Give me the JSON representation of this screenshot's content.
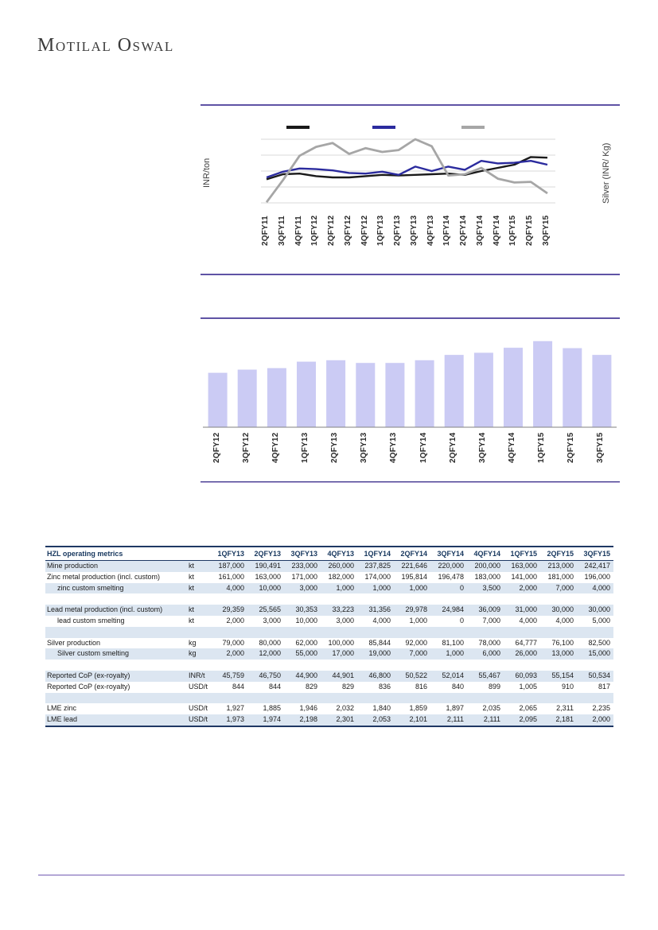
{
  "brand": {
    "name": "Motilal Oswal"
  },
  "chart_data": [
    {
      "type": "line",
      "title": "",
      "ylabel": "INR/ton",
      "y2label": "Silver (INR/ Kg)",
      "ylim": [
        0,
        100
      ],
      "grid": true,
      "legend_position": "top",
      "legend_labels_visible": false,
      "x": [
        "2QFY11",
        "3QFY11",
        "4QFY11",
        "1QFY12",
        "2QFY12",
        "3QFY12",
        "4QFY12",
        "1QFY13",
        "2QFY13",
        "3QFY13",
        "4QFY13",
        "1QFY14",
        "2QFY14",
        "3QFY14",
        "4QFY14",
        "1QFY15",
        "2QFY15",
        "3QFY15"
      ],
      "series": [
        {
          "name": "black-series",
          "color": "#1a1a1a",
          "width": 2.4,
          "values": [
            37,
            45,
            46,
            42,
            40,
            40,
            42,
            44,
            43,
            44,
            45,
            46,
            44,
            50,
            55,
            60,
            72,
            71
          ]
        },
        {
          "name": "navy-series",
          "color": "#2b2b9e",
          "width": 2.4,
          "values": [
            40,
            49,
            54,
            53,
            51,
            47,
            46,
            49,
            44,
            57,
            50,
            57,
            52,
            66,
            62,
            63,
            66,
            60
          ]
        },
        {
          "name": "gray-series",
          "color": "#a6a6a6",
          "width": 2.8,
          "values": [
            1,
            36,
            74,
            88,
            94,
            77,
            86,
            80,
            83,
            100,
            89,
            43,
            45,
            55,
            38,
            32,
            33,
            15
          ]
        }
      ]
    },
    {
      "type": "bar",
      "title": "",
      "xlabel": "",
      "ylabel": "",
      "ylim": [
        0,
        65
      ],
      "bar_color": "#cbcbf4",
      "categories": [
        "2QFY12",
        "3QFY12",
        "4QFY12",
        "1QFY13",
        "2QFY13",
        "3QFY13",
        "4QFY13",
        "1QFY14",
        "2QFY14",
        "3QFY14",
        "4QFY14",
        "1QFY15",
        "2QFY15",
        "3QFY15"
      ],
      "values": [
        38.0,
        40.2,
        41.3,
        45.8,
        46.8,
        44.9,
        44.9,
        46.8,
        50.5,
        52.0,
        55.5,
        60.1,
        55.2,
        50.5
      ]
    }
  ],
  "table": {
    "title": "HZL operating metrics",
    "columns": [
      "1QFY13",
      "2QFY13",
      "3QFY13",
      "4QFY13",
      "1QFY14",
      "2QFY14",
      "3QFY14",
      "4QFY14",
      "1QFY15",
      "2QFY15",
      "3QFY15"
    ],
    "rows": [
      {
        "label": "Mine production",
        "unit": "kt",
        "indent": false,
        "values": [
          "187,000",
          "190,491",
          "233,000",
          "260,000",
          "237,825",
          "221,646",
          "220,000",
          "200,000",
          "163,000",
          "213,000",
          "242,417"
        ]
      },
      {
        "label": "Zinc metal production (incl. custom)",
        "unit": "kt",
        "indent": false,
        "values": [
          "161,000",
          "163,000",
          "171,000",
          "182,000",
          "174,000",
          "195,814",
          "196,478",
          "183,000",
          "141,000",
          "181,000",
          "196,000"
        ]
      },
      {
        "label": "zinc custom smelting",
        "unit": "kt",
        "indent": true,
        "values": [
          "4,000",
          "10,000",
          "3,000",
          "1,000",
          "1,000",
          "1,000",
          "0",
          "3,500",
          "2,000",
          "7,000",
          "4,000"
        ]
      },
      {
        "label": "",
        "unit": "",
        "indent": false,
        "values": [
          "",
          "",
          "",
          "",
          "",
          "",
          "",
          "",
          "",
          "",
          ""
        ]
      },
      {
        "label": "Lead metal production (incl. custom)",
        "unit": "kt",
        "indent": false,
        "values": [
          "29,359",
          "25,565",
          "30,353",
          "33,223",
          "31,356",
          "29,978",
          "24,984",
          "36,009",
          "31,000",
          "30,000",
          "30,000"
        ]
      },
      {
        "label": "lead custom smelting",
        "unit": "kt",
        "indent": true,
        "values": [
          "2,000",
          "3,000",
          "10,000",
          "3,000",
          "4,000",
          "1,000",
          "0",
          "7,000",
          "4,000",
          "4,000",
          "5,000"
        ]
      },
      {
        "label": "",
        "unit": "",
        "indent": false,
        "values": [
          "",
          "",
          "",
          "",
          "",
          "",
          "",
          "",
          "",
          "",
          ""
        ]
      },
      {
        "label": "Silver production",
        "unit": "kg",
        "indent": false,
        "values": [
          "79,000",
          "80,000",
          "62,000",
          "100,000",
          "85,844",
          "92,000",
          "81,100",
          "78,000",
          "64,777",
          "76,100",
          "82,500"
        ]
      },
      {
        "label": "Silver custom smelting",
        "unit": "kg",
        "indent": true,
        "values": [
          "2,000",
          "12,000",
          "55,000",
          "17,000",
          "19,000",
          "7,000",
          "1,000",
          "6,000",
          "26,000",
          "13,000",
          "15,000"
        ]
      },
      {
        "label": "",
        "unit": "",
        "indent": false,
        "values": [
          "",
          "",
          "",
          "",
          "",
          "",
          "",
          "",
          "",
          "",
          ""
        ]
      },
      {
        "label": "Reported CoP (ex-royalty)",
        "unit": "INR/t",
        "indent": false,
        "values": [
          "45,759",
          "46,750",
          "44,900",
          "44,901",
          "46,800",
          "50,522",
          "52,014",
          "55,467",
          "60,093",
          "55,154",
          "50,534"
        ]
      },
      {
        "label": "Reported CoP (ex-royalty)",
        "unit": "USD/t",
        "indent": false,
        "values": [
          "844",
          "844",
          "829",
          "829",
          "836",
          "816",
          "840",
          "899",
          "1,005",
          "910",
          "817"
        ]
      },
      {
        "label": "",
        "unit": "",
        "indent": false,
        "values": [
          "",
          "",
          "",
          "",
          "",
          "",
          "",
          "",
          "",
          "",
          ""
        ]
      },
      {
        "label": "LME zinc",
        "unit": "USD/t",
        "indent": false,
        "values": [
          "1,927",
          "1,885",
          "1,946",
          "2,032",
          "1,840",
          "1,859",
          "1,897",
          "2,035",
          "2,065",
          "2,311",
          "2,235"
        ]
      },
      {
        "label": "LME lead",
        "unit": "USD/t",
        "indent": false,
        "values": [
          "1,973",
          "1,974",
          "2,198",
          "2,301",
          "2,053",
          "2,101",
          "2,111",
          "2,111",
          "2,095",
          "2,181",
          "2,000"
        ]
      }
    ]
  },
  "colors": {
    "panel_rule": "#5f53a5",
    "footer_rule": "#b4a7d6",
    "table_navy": "#1f3864",
    "row_shading": "#dce6f1",
    "gridline": "#d9d9d9",
    "bar_fill": "#cbcbf4",
    "axis_line": "#808080"
  }
}
